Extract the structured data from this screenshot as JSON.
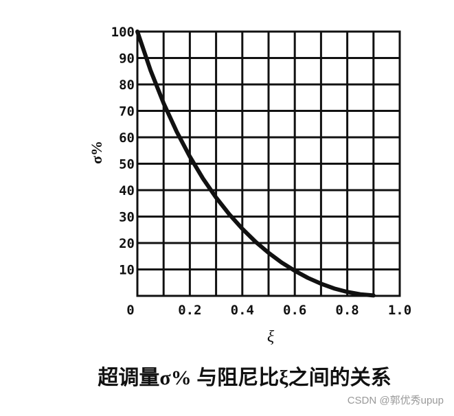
{
  "chart_data": {
    "type": "line",
    "caption": "超调量σ% 与阻尼比ξ之间的关系",
    "xlabel": "ξ",
    "ylabel": "σ%",
    "watermark": "CSDN @郭优秀upup",
    "x": [
      0,
      0.05,
      0.1,
      0.15,
      0.2,
      0.25,
      0.3,
      0.35,
      0.4,
      0.45,
      0.5,
      0.55,
      0.6,
      0.65,
      0.7,
      0.75,
      0.8,
      0.85,
      0.9
    ],
    "series": [
      {
        "color": "#111111",
        "values": [
          100,
          85.4,
          72.9,
          62.1,
          52.7,
          44.4,
          37.2,
          30.9,
          25.4,
          20.5,
          16.3,
          12.6,
          9.5,
          6.8,
          4.6,
          2.8,
          1.5,
          0.6,
          0.15
        ]
      }
    ],
    "xlim": [
      0,
      1
    ],
    "ylim": [
      0,
      100
    ],
    "xticks": [
      0,
      0.2,
      0.4,
      0.6,
      0.8,
      {
        "value": 1,
        "label": "1.0"
      }
    ],
    "xminor": [
      0.1,
      0.3,
      0.5,
      0.7,
      0.9
    ],
    "yticks": [
      10,
      20,
      30,
      40,
      50,
      60,
      70,
      80,
      90,
      100
    ],
    "grid": true
  }
}
